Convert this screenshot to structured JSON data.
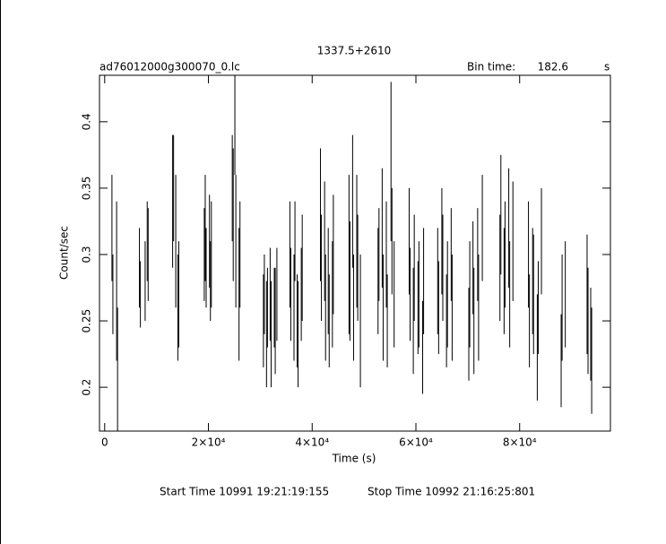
{
  "chart_data": {
    "type": "errorbar",
    "title": "1337.5+2610",
    "file_label": "ad76012000g300070_0.lc",
    "bin_label": "Bin time:",
    "bin_value": "182.6",
    "bin_unit": "s",
    "x_label": "Time (s)",
    "y_label": "Count/sec",
    "start_time": "Start Time 10991 19:21:19:155",
    "stop_time": "Stop Time 10992 21:16:25:801",
    "xlim": [
      -1000,
      97500
    ],
    "ylim": [
      0.167,
      0.435
    ],
    "xticks": [
      0,
      {
        "value": 20000,
        "label": "2×10⁴"
      },
      {
        "value": 40000,
        "label": "4×10⁴"
      },
      {
        "value": 60000,
        "label": "6×10⁴"
      },
      {
        "value": 80000,
        "label": "8×10⁴"
      }
    ],
    "yticks": [
      0.2,
      0.25,
      0.3,
      0.35,
      0.4
    ],
    "series": [
      {
        "color": "#000000",
        "x": [
          1400,
          1583,
          2300,
          2483,
          6700,
          6883,
          7800,
          8200,
          8383,
          13100,
          13283,
          13700,
          14100,
          14283,
          19200,
          19383,
          19566,
          20200,
          20383,
          20566,
          24600,
          24783,
          25100,
          25283,
          25900,
          26083,
          30600,
          30783,
          31200,
          31383,
          31900,
          32083,
          32700,
          32883,
          33200,
          35700,
          35883,
          36500,
          36683,
          37100,
          37283,
          37900,
          38083,
          41600,
          41783,
          42400,
          42583,
          43100,
          43283,
          43900,
          44083,
          47100,
          47283,
          47800,
          47983,
          48600,
          48783,
          49300,
          52700,
          52883,
          53500,
          53683,
          54300,
          54483,
          55200,
          55383,
          55800,
          58700,
          58883,
          59500,
          59683,
          60400,
          60583,
          61300,
          61483,
          64200,
          64383,
          65000,
          65183,
          65900,
          66083,
          66800,
          66983,
          70200,
          70383,
          71000,
          71183,
          71900,
          72083,
          72800,
          76200,
          76383,
          77000,
          77183,
          77900,
          78083,
          78700,
          81700,
          81883,
          82500,
          82683,
          83400,
          83583,
          84200,
          88000,
          88183,
          88800,
          93000,
          93183,
          93700,
          93883
        ],
        "values": [
          0.32,
          0.27,
          0.28,
          0.21,
          0.29,
          0.27,
          0.28,
          0.31,
          0.3,
          0.34,
          0.35,
          0.31,
          0.26,
          0.27,
          0.3,
          0.32,
          0.29,
          0.31,
          0.28,
          0.3,
          0.35,
          0.33,
          0.4,
          0.31,
          0.27,
          0.3,
          0.25,
          0.27,
          0.24,
          0.26,
          0.27,
          0.24,
          0.26,
          0.25,
          0.27,
          0.3,
          0.27,
          0.26,
          0.31,
          0.25,
          0.24,
          0.27,
          0.29,
          0.33,
          0.29,
          0.31,
          0.26,
          0.28,
          0.25,
          0.27,
          0.3,
          0.3,
          0.28,
          0.34,
          0.26,
          0.31,
          0.29,
          0.25,
          0.28,
          0.3,
          0.32,
          0.26,
          0.3,
          0.25,
          0.37,
          0.31,
          0.27,
          0.31,
          0.27,
          0.25,
          0.29,
          0.26,
          0.27,
          0.23,
          0.28,
          0.28,
          0.26,
          0.31,
          0.29,
          0.25,
          0.27,
          0.3,
          0.26,
          0.24,
          0.27,
          0.29,
          0.25,
          0.3,
          0.26,
          0.32,
          0.29,
          0.33,
          0.28,
          0.3,
          0.32,
          0.27,
          0.31,
          0.3,
          0.25,
          0.28,
          0.27,
          0.23,
          0.26,
          0.31,
          0.22,
          0.26,
          0.27,
          0.27,
          0.25,
          0.24,
          0.22
        ],
        "errors": [
          0.04,
          0.03,
          0.06,
          0.05,
          0.03,
          0.025,
          0.03,
          0.03,
          0.035,
          0.05,
          0.04,
          0.05,
          0.04,
          0.04,
          0.035,
          0.04,
          0.03,
          0.035,
          0.03,
          0.04,
          0.04,
          0.05,
          0.04,
          0.05,
          0.05,
          0.04,
          0.035,
          0.03,
          0.04,
          0.03,
          0.035,
          0.04,
          0.03,
          0.04,
          0.035,
          0.04,
          0.035,
          0.04,
          0.03,
          0.035,
          0.04,
          0.035,
          0.04,
          0.05,
          0.04,
          0.045,
          0.04,
          0.04,
          0.035,
          0.04,
          0.045,
          0.06,
          0.045,
          0.05,
          0.04,
          0.05,
          0.04,
          0.05,
          0.04,
          0.035,
          0.045,
          0.04,
          0.04,
          0.035,
          0.06,
          0.04,
          0.04,
          0.04,
          0.035,
          0.04,
          0.04,
          0.035,
          0.04,
          0.035,
          0.04,
          0.04,
          0.035,
          0.04,
          0.04,
          0.035,
          0.04,
          0.035,
          0.04,
          0.035,
          0.04,
          0.035,
          0.04,
          0.035,
          0.04,
          0.04,
          0.04,
          0.045,
          0.04,
          0.04,
          0.045,
          0.04,
          0.045,
          0.04,
          0.035,
          0.04,
          0.045,
          0.04,
          0.035,
          0.04,
          0.035,
          0.04,
          0.04,
          0.045,
          0.04,
          0.035,
          0.04
        ]
      }
    ]
  }
}
